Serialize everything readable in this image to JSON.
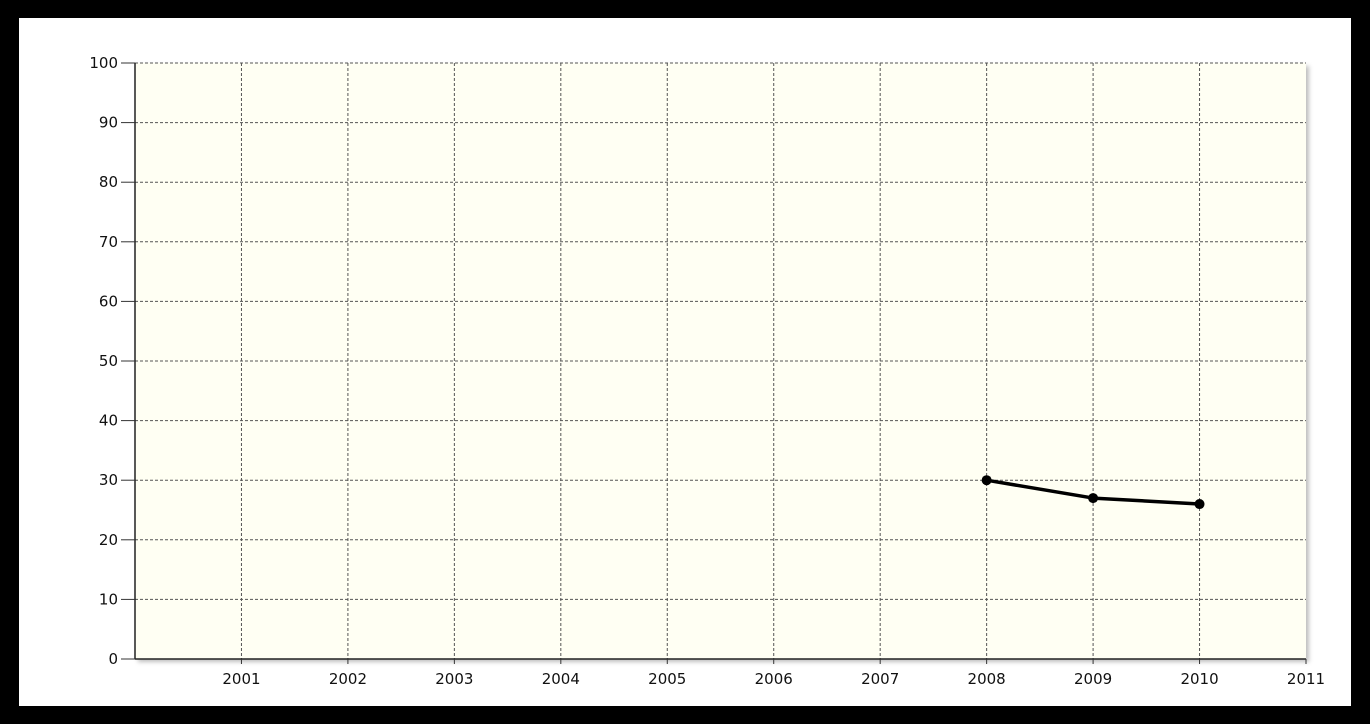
{
  "chart_data": {
    "type": "line",
    "title": "",
    "xlabel": "",
    "ylabel": "",
    "x_ticks": [
      "2001",
      "2002",
      "2003",
      "2004",
      "2005",
      "2006",
      "2007",
      "2008",
      "2009",
      "2010",
      "2011"
    ],
    "y_ticks": [
      "0",
      "10",
      "20",
      "30",
      "40",
      "50",
      "60",
      "70",
      "80",
      "90",
      "100"
    ],
    "xlim": [
      2000,
      2011
    ],
    "ylim": [
      0,
      100
    ],
    "grid": true,
    "legend": "none",
    "series": [
      {
        "x": [
          2008,
          2009,
          2010
        ],
        "y": [
          30,
          27,
          26
        ]
      }
    ],
    "colors": {
      "line": "#000000",
      "plot_background": "#fffff3",
      "grid": "#555555",
      "page_background": "#000000"
    }
  }
}
